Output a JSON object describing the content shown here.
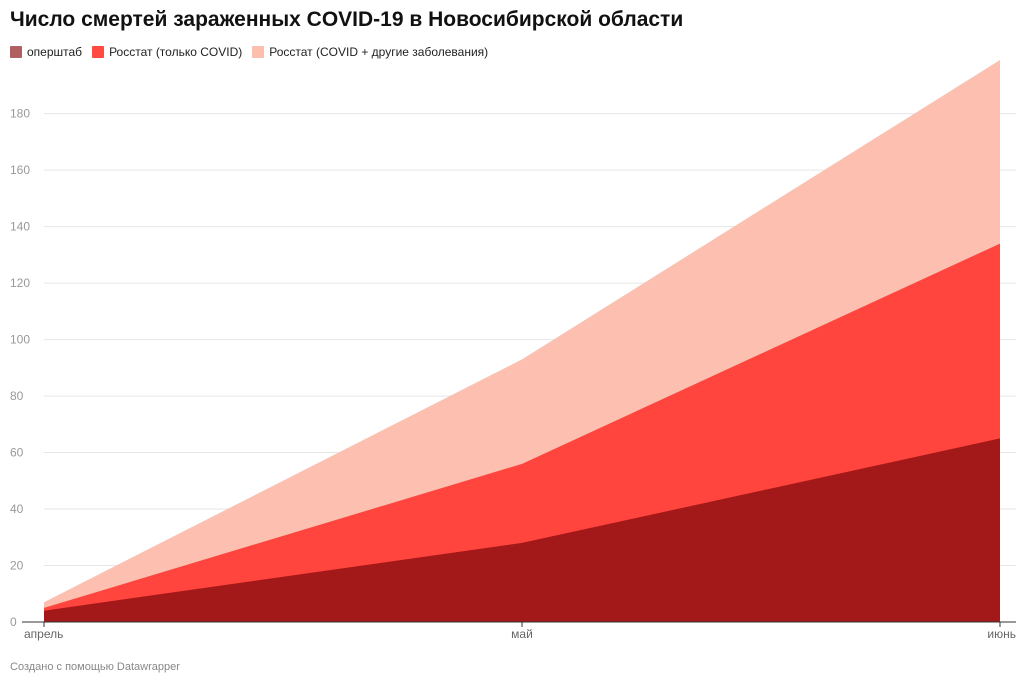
{
  "chart_data": {
    "type": "area",
    "title": "Число смертей зараженных COVID-19 в Новосибирской области",
    "xlabel": "",
    "ylabel": "",
    "categories": [
      "апрель",
      "май",
      "июнь"
    ],
    "series": [
      {
        "name": "оперштаб",
        "values": [
          4,
          28,
          65
        ],
        "color": "#a31818",
        "legend_color": "#b06060"
      },
      {
        "name": "Росстат (только COVID)",
        "values": [
          5,
          56,
          134
        ],
        "color": "#ff453e",
        "legend_color": "#ff4a42"
      },
      {
        "name": "Росстат (COVID + другие заболевания)",
        "values": [
          7,
          93,
          199
        ],
        "color": "#fdbfaf",
        "legend_color": "#fcbfae"
      }
    ],
    "ylim": [
      0,
      199
    ],
    "yticks": [
      0,
      20,
      40,
      60,
      80,
      100,
      120,
      140,
      160,
      180
    ],
    "grid": true,
    "legend_position": "top-left"
  },
  "footer": "Создано с помощью Datawrapper"
}
